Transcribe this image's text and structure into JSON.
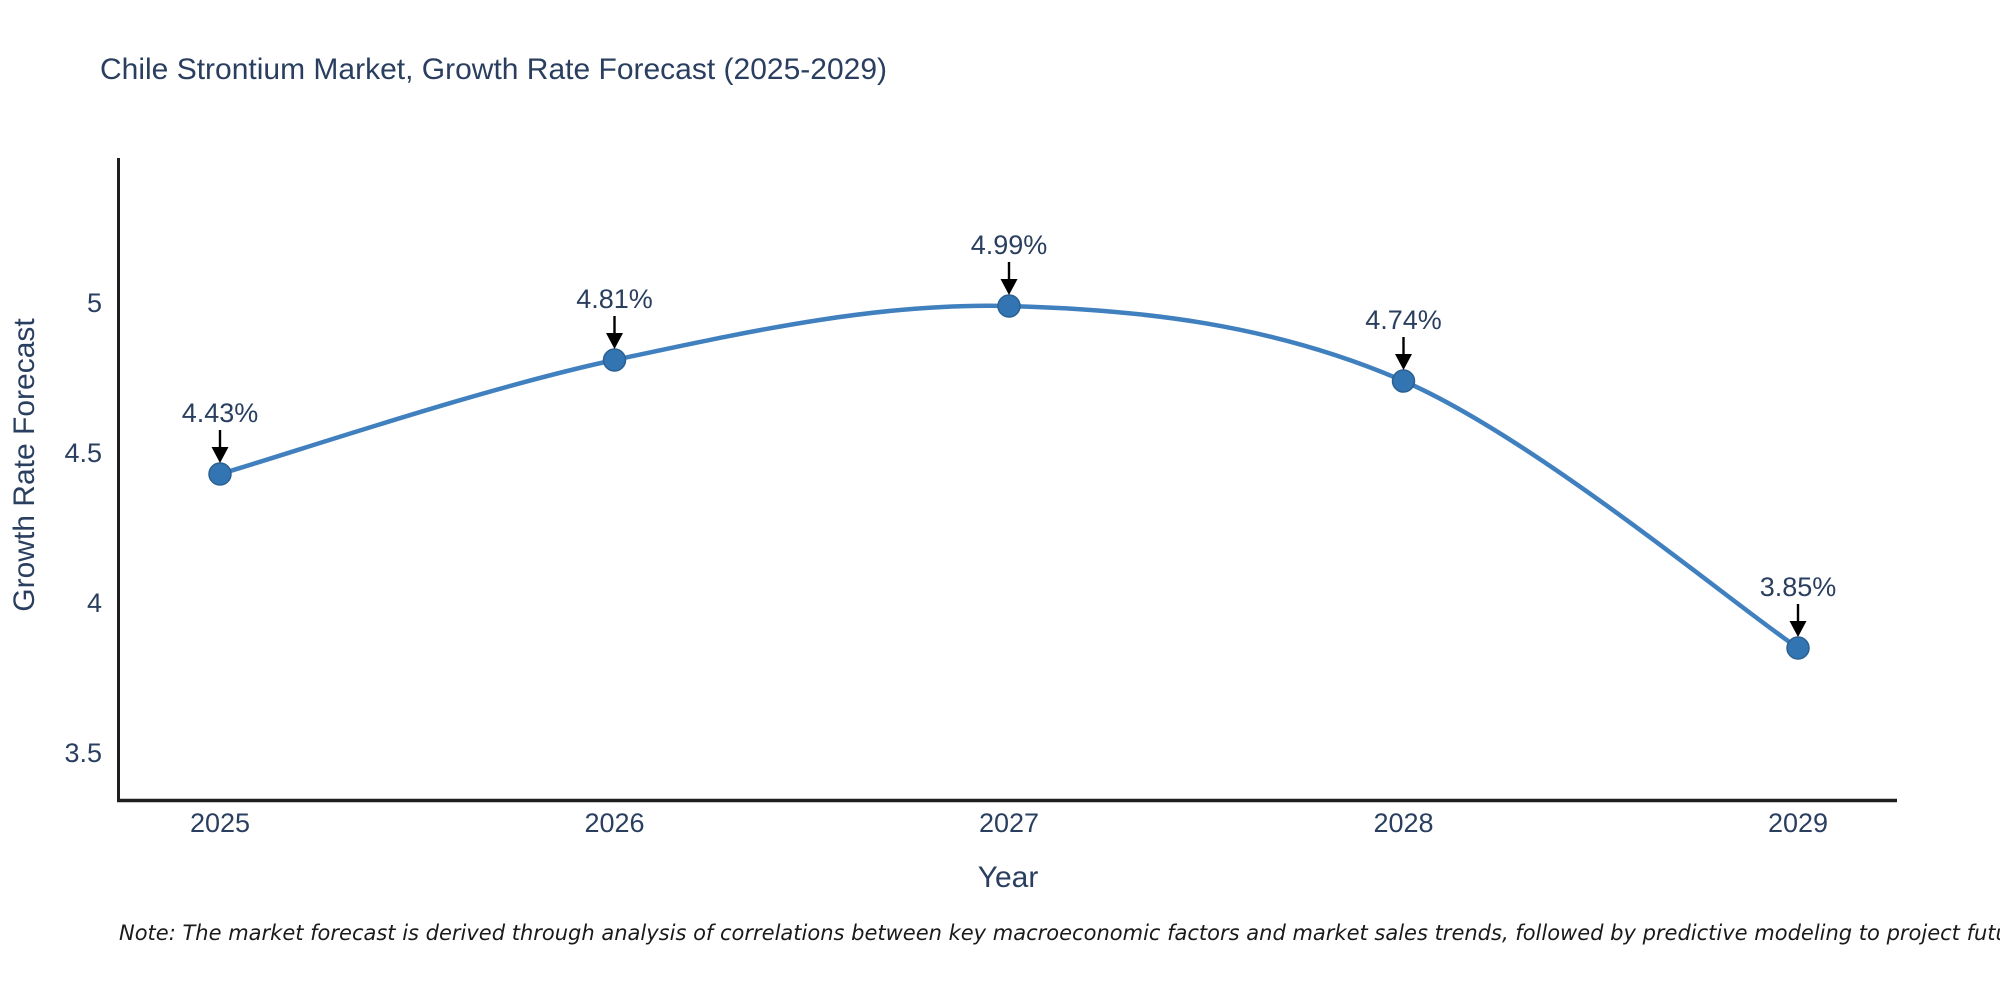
{
  "title": "Chile Strontium Market, Growth Rate Forecast (2025-2029)",
  "note": "Note: The market forecast is derived through analysis of correlations between key macroeconomic factors and market sales trends, followed by predictive modeling to project future sales",
  "chart_data": {
    "type": "line",
    "title": "Chile Strontium Market, Growth Rate Forecast (2025-2029)",
    "xlabel": "Year",
    "ylabel": "Growth Rate Forecast",
    "categories": [
      "2025",
      "2026",
      "2027",
      "2028",
      "2029"
    ],
    "series": [
      {
        "name": "Growth Rate Forecast",
        "values": [
          4.43,
          4.81,
          4.99,
          4.74,
          3.85
        ],
        "point_labels": [
          "4.43%",
          "4.81%",
          "4.99%",
          "4.74%",
          "3.85%"
        ]
      }
    ],
    "yticks": [
      3.5,
      4,
      4.5,
      5
    ],
    "ylim": [
      3.34,
      5.48
    ],
    "line_shape": "spline",
    "grid": false,
    "legend_position": "none",
    "annotations": "arrow-down-to-point"
  },
  "colors": {
    "line": "#4080bf",
    "marker": "#3375b2",
    "marker_edge": "#2b6093",
    "axis_line": "#1f1f1f",
    "arrow": "#000000",
    "text": "#2a3f5f",
    "note": "#1a1a1a",
    "background": "#ffffff"
  }
}
